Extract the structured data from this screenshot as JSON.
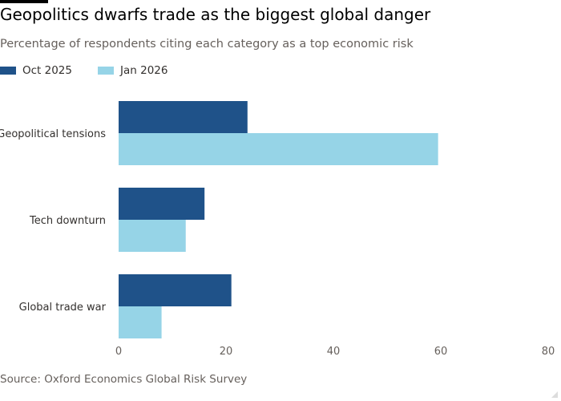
{
  "title": "Geopolitics dwarfs trade as the biggest global danger",
  "subtitle": "Percentage of respondents citing each category as a top economic risk",
  "source": "Source: Oxford Economics Global Risk Survey",
  "chart_data": {
    "type": "bar",
    "orientation": "horizontal",
    "categories": [
      "Geopolitical tensions",
      "Tech downturn",
      "Global trade war"
    ],
    "series": [
      {
        "name": "Oct 2025",
        "color": "#1f5289",
        "values": [
          24,
          16,
          21
        ]
      },
      {
        "name": "Jan 2026",
        "color": "#96d4e7",
        "values": [
          59.5,
          12.5,
          8
        ]
      }
    ],
    "xlim": [
      0,
      80
    ],
    "xticks": [
      0,
      20,
      40,
      60,
      80
    ],
    "grid": false,
    "legend_placement": "top-left"
  }
}
